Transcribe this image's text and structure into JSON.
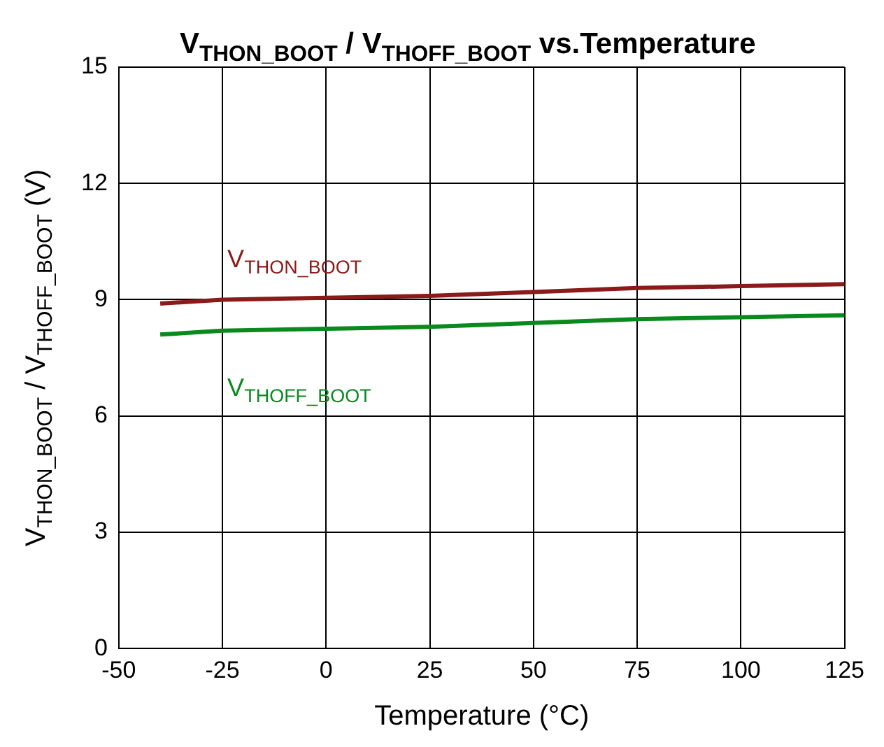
{
  "chart_data": {
    "type": "line",
    "title": "V$_{THON_BOOT}$ / V$_{THOFF_BOOT}$ vs.Temperature",
    "xlabel": "Temperature (°C)",
    "ylabel": "V$_{THON_BOOT}$ / V$_{THOFF_BOOT}$ (V)",
    "x": [
      -40,
      -25,
      0,
      25,
      50,
      75,
      100,
      125
    ],
    "series": [
      {
        "name": "V$_{THON_BOOT}$",
        "color": "#8b1a1a",
        "values": [
          8.9,
          9.0,
          9.05,
          9.1,
          9.2,
          9.3,
          9.35,
          9.4
        ]
      },
      {
        "name": "V$_{THOFF_BOOT}$",
        "color": "#0a8a1e",
        "values": [
          8.1,
          8.2,
          8.25,
          8.3,
          8.4,
          8.5,
          8.55,
          8.6
        ]
      }
    ],
    "xlim": [
      -50,
      125
    ],
    "xticks": [
      -50,
      -25,
      0,
      25,
      50,
      75,
      100,
      125
    ],
    "ylim": [
      0,
      15
    ],
    "yticks": [
      0,
      3,
      6,
      9,
      12,
      15
    ],
    "grid": true,
    "legend": false,
    "marker": "none",
    "line_style": "solid"
  }
}
